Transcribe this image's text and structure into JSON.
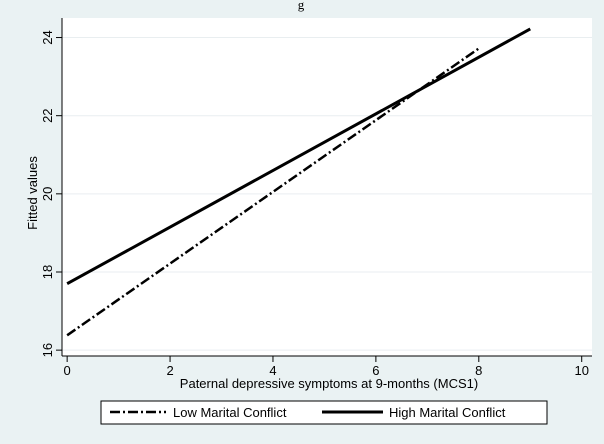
{
  "chart_data": {
    "type": "line",
    "title": "",
    "top_caption": "g",
    "xlabel": "Paternal depressive symptoms at 9-months (MCS1)",
    "ylabel": "Fitted values",
    "xlim": [
      -0.1,
      10.2
    ],
    "ylim": [
      15.85,
      24.5
    ],
    "x_ticks": [
      0,
      2,
      4,
      6,
      8,
      10
    ],
    "y_ticks": [
      16,
      18,
      20,
      22,
      24
    ],
    "grid": true,
    "legend_position": "bottom",
    "series": [
      {
        "name": "Low Marital Conflict",
        "x": [
          0,
          8
        ],
        "y": [
          16.38,
          23.72
        ],
        "style": "dash-dot",
        "color": "#000000"
      },
      {
        "name": "High Marital Conflict",
        "x": [
          0,
          9
        ],
        "y": [
          17.7,
          24.22
        ],
        "style": "solid",
        "color": "#000000"
      }
    ],
    "colors": {
      "background": "#eaf2f3",
      "plot_background": "#ffffff",
      "grid": "#e9eef0"
    }
  }
}
